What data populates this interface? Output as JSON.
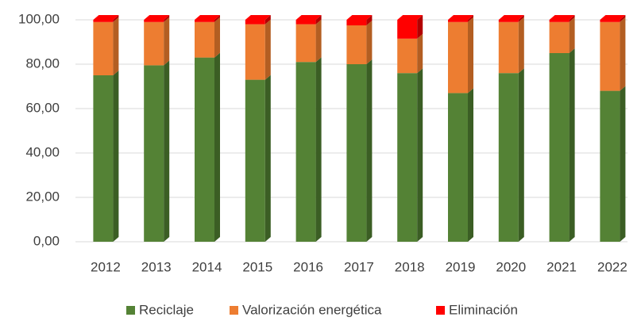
{
  "chart_data": {
    "type": "bar3d_stacked",
    "categories": [
      "2012",
      "2013",
      "2014",
      "2015",
      "2016",
      "2017",
      "2018",
      "2019",
      "2020",
      "2021",
      "2022"
    ],
    "series": [
      {
        "name": "Reciclaje",
        "color": "#548235",
        "side_color": "#3b5e24",
        "values": [
          75,
          79.5,
          83,
          73,
          81,
          80,
          76,
          67,
          76,
          85,
          68
        ]
      },
      {
        "name": "Valorización energética",
        "color": "#ed7d31",
        "side_color": "#b35e22",
        "values": [
          24,
          19.5,
          16,
          25,
          17,
          17.5,
          15.5,
          32,
          23,
          14,
          31
        ]
      },
      {
        "name": "Eliminación",
        "color": "#ff0000",
        "side_color": "#b30000",
        "values": [
          1,
          1,
          1,
          2,
          2,
          2.5,
          8.5,
          1,
          1,
          1,
          1
        ]
      }
    ],
    "ylim": [
      0,
      100
    ],
    "yticks": [
      {
        "value": 0,
        "label": "0,00"
      },
      {
        "value": 20,
        "label": "20,00"
      },
      {
        "value": 40,
        "label": "40,00"
      },
      {
        "value": 60,
        "label": "60,00"
      },
      {
        "value": 80,
        "label": "80,00"
      },
      {
        "value": 100,
        "label": "100,00"
      }
    ],
    "grid": true,
    "legend": "bottom"
  }
}
